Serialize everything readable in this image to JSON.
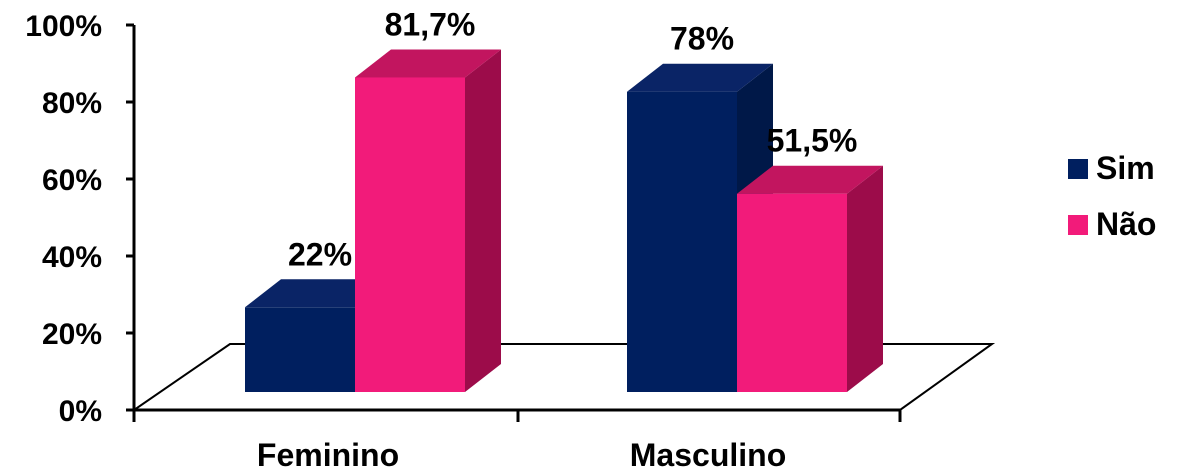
{
  "chart_data": {
    "type": "bar",
    "categories": [
      "Feminino",
      "Masculino"
    ],
    "series": [
      {
        "name": "Sim",
        "values": [
          22,
          78
        ],
        "data_labels": [
          "22%",
          "78%"
        ],
        "color": "#001F5F"
      },
      {
        "name": "Não",
        "values": [
          81.7,
          51.5
        ],
        "data_labels": [
          "81,7%",
          "51,5%"
        ],
        "color": "#F21B7A"
      }
    ],
    "y_ticks": [
      "0%",
      "20%",
      "40%",
      "60%",
      "80%",
      "100%"
    ],
    "ylim": [
      0,
      100
    ],
    "legend_position": "right",
    "grid": false,
    "style": "3d-clustered-column"
  }
}
